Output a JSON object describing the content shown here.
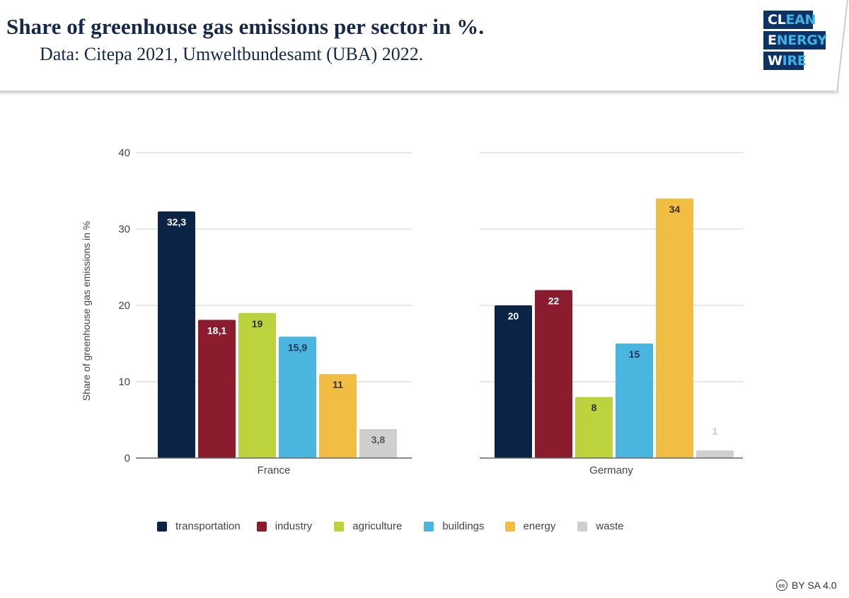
{
  "header": {
    "title": "Share of greenhouse gas emissions per sector in %.",
    "subtitle": "Data: Citepa 2021, Umweltbundesamt (UBA) 2022."
  },
  "logo": {
    "lines": [
      {
        "white": "CL",
        "blue": "EAN"
      },
      {
        "white": "E",
        "blue": "NERGY"
      },
      {
        "white": "W",
        "blue": "IRE"
      }
    ],
    "colors": {
      "background": "#0c3266",
      "accent": "#3cb4e5",
      "white": "#ffffff"
    }
  },
  "license": {
    "icon": "cc-icon",
    "icon_text": "cc",
    "text": "BY SA 4.0"
  },
  "chart_data": {
    "type": "bar",
    "title": "Share of greenhouse gas emissions per sector in %.",
    "subtitle": "Data: Citepa 2021, Umweltbundesamt (UBA) 2022.",
    "xlabel": "",
    "ylabel": "Share of greenhouse gas emissions in %",
    "ylim": [
      0,
      40
    ],
    "yticks": [
      0,
      10,
      20,
      30,
      40
    ],
    "grid": true,
    "legend_position": "bottom",
    "categories": [
      "France",
      "Germany"
    ],
    "series": [
      {
        "name": "transportation",
        "color": "#0b2344",
        "label_color": "#ffffff",
        "values": [
          32.3,
          20
        ],
        "labels": [
          "32,3",
          "20"
        ]
      },
      {
        "name": "industry",
        "color": "#8b1c2e",
        "label_color": "#ffffff",
        "values": [
          18.1,
          22
        ],
        "labels": [
          "18,1",
          "22"
        ]
      },
      {
        "name": "agriculture",
        "color": "#bcd33d",
        "label_color": "#333333",
        "values": [
          19,
          8
        ],
        "labels": [
          "19",
          "8"
        ]
      },
      {
        "name": "buildings",
        "color": "#4ab6e0",
        "label_color": "#1e3550",
        "values": [
          15.9,
          15
        ],
        "labels": [
          "15,9",
          "15"
        ]
      },
      {
        "name": "energy",
        "color": "#f1bd42",
        "label_color": "#3a3020",
        "values": [
          11,
          34
        ],
        "labels": [
          "11",
          "34"
        ]
      },
      {
        "name": "waste",
        "color": "#cfcfcf",
        "label_color": "#555555",
        "values": [
          3.8,
          1
        ],
        "labels": [
          "3,8",
          "1"
        ]
      }
    ]
  }
}
